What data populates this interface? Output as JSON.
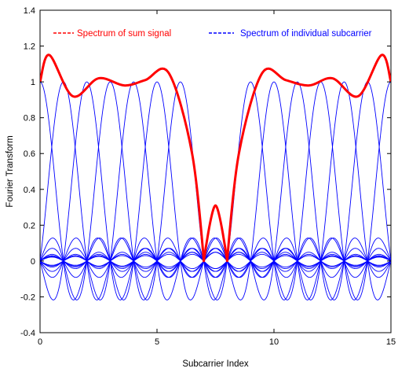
{
  "chart_data": {
    "type": "line",
    "xlabel": "Subcarrier Index",
    "ylabel": "Fourier Transform",
    "xlim": [
      0,
      15
    ],
    "ylim": [
      -0.4,
      1.4
    ],
    "xticks": [
      0,
      5,
      10,
      15
    ],
    "xtick_labels": [
      "0",
      "5",
      "10",
      "15"
    ],
    "yticks": [
      -0.4,
      -0.2,
      0,
      0.2,
      0.4,
      0.6,
      0.8,
      1,
      1.2,
      1.4
    ],
    "ytick_labels": [
      "-0.4",
      "-0.2",
      "0",
      "0.2",
      "0.4",
      "0.6",
      "0.8",
      "1",
      "1.2",
      "1.4"
    ],
    "grid": false,
    "legend_position": "top",
    "individual_subcarrier_centers": [
      0,
      1,
      2,
      3,
      4,
      5,
      6,
      9,
      10,
      11,
      12,
      13,
      14,
      15
    ],
    "series": [
      {
        "name": "Spectrum of sum signal",
        "color": "#ff0000",
        "line_style": "solid",
        "x": [
          0,
          0.4,
          1.4,
          2.5,
          3.6,
          4.5,
          5.5,
          6.5,
          7,
          7.5,
          8,
          8.5,
          9.5,
          10.5,
          11.5,
          12.5,
          13.6,
          14.6,
          15
        ],
        "values": [
          1.0,
          1.15,
          0.92,
          1.02,
          0.98,
          1.01,
          1.05,
          0.6,
          0.0,
          0.31,
          0.0,
          0.6,
          1.05,
          1.01,
          0.98,
          1.02,
          0.92,
          1.15,
          1.0
        ]
      },
      {
        "name": "Spectrum of individual subcarrier",
        "color": "#0000ff",
        "line_style": "solid",
        "x": [
          0,
          0.5,
          1,
          1.5,
          2
        ],
        "values": [
          1.0,
          0.64,
          0.0,
          -0.21,
          0.0
        ]
      }
    ]
  }
}
